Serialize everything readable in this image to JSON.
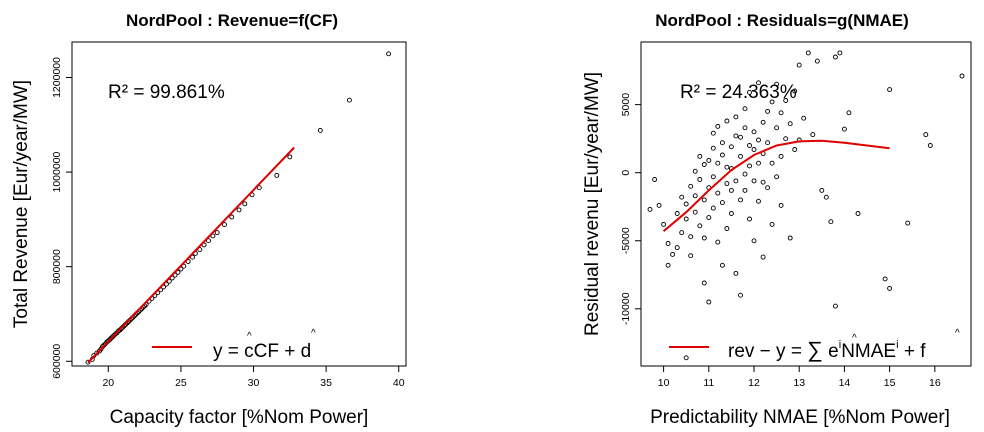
{
  "chart_data": [
    {
      "type": "scatter",
      "title": "NordPool : Revenue=f(CF)",
      "xlabel": "Capacity factor [%Nom Power]",
      "ylabel": "Total Revenue [Eur/year/MW]",
      "xlim": [
        17.5,
        40.5
      ],
      "ylim": [
        590000,
        1275000
      ],
      "x_ticks": [
        20,
        25,
        30,
        35,
        40
      ],
      "y_ticks": [
        600000,
        800000,
        1000000,
        1200000
      ],
      "x_tick_labels": [
        "20",
        "25",
        "30",
        "35",
        "40"
      ],
      "y_tick_labels": [
        "600000",
        "800000",
        "1000000",
        "1200000"
      ],
      "annotation": "R² = 99.861%",
      "legend": {
        "position": "bottom-right",
        "line_color": "#e00000",
        "label": "y = ĉCF + d̂"
      },
      "grid": false,
      "fit_line": {
        "color": "#e00000",
        "points": [
          [
            18.6,
            597000
          ],
          [
            32.8,
            1052000
          ]
        ]
      },
      "series": [
        {
          "values": [
            [
              18.6,
              598000
            ],
            [
              18.9,
              604000
            ],
            [
              19.0,
              612000
            ],
            [
              19.2,
              617000
            ],
            [
              19.4,
              622000
            ],
            [
              19.5,
              626000
            ],
            [
              19.6,
              631000
            ],
            [
              19.7,
              634000
            ],
            [
              19.8,
              637000
            ],
            [
              19.9,
              641000
            ],
            [
              20.0,
              643000
            ],
            [
              20.1,
              646000
            ],
            [
              20.2,
              649000
            ],
            [
              20.3,
              652000
            ],
            [
              20.4,
              655000
            ],
            [
              20.5,
              658000
            ],
            [
              20.6,
              660000
            ],
            [
              20.7,
              664000
            ],
            [
              20.8,
              666000
            ],
            [
              20.9,
              669000
            ],
            [
              21.0,
              672000
            ],
            [
              21.1,
              675000
            ],
            [
              21.2,
              678000
            ],
            [
              21.3,
              681000
            ],
            [
              21.4,
              684000
            ],
            [
              21.5,
              687000
            ],
            [
              21.6,
              690000
            ],
            [
              21.7,
              693000
            ],
            [
              21.8,
              696000
            ],
            [
              21.9,
              699000
            ],
            [
              22.0,
              702000
            ],
            [
              22.1,
              705000
            ],
            [
              22.2,
              708000
            ],
            [
              22.3,
              711000
            ],
            [
              22.4,
              714000
            ],
            [
              22.5,
              717000
            ],
            [
              22.6,
              720000
            ],
            [
              22.8,
              727000
            ],
            [
              23.0,
              733000
            ],
            [
              23.2,
              739000
            ],
            [
              23.4,
              745000
            ],
            [
              23.6,
              751000
            ],
            [
              23.8,
              757000
            ],
            [
              24.0,
              763000
            ],
            [
              24.2,
              769000
            ],
            [
              24.4,
              776000
            ],
            [
              24.6,
              782000
            ],
            [
              24.8,
              788000
            ],
            [
              25.0,
              795000
            ],
            [
              25.2,
              801000
            ],
            [
              25.5,
              811000
            ],
            [
              25.8,
              820000
            ],
            [
              26.0,
              828000
            ],
            [
              26.3,
              836000
            ],
            [
              26.6,
              846000
            ],
            [
              26.9,
              855000
            ],
            [
              27.2,
              865000
            ],
            [
              27.5,
              872000
            ],
            [
              28.0,
              889000
            ],
            [
              28.5,
              905000
            ],
            [
              29.0,
              920000
            ],
            [
              29.4,
              933000
            ],
            [
              29.9,
              952000
            ],
            [
              30.4,
              967000
            ],
            [
              31.6,
              993000
            ],
            [
              32.5,
              1032000
            ],
            [
              34.6,
              1088000
            ],
            [
              36.6,
              1152000
            ],
            [
              39.3,
              1250000
            ]
          ]
        }
      ]
    },
    {
      "type": "scatter",
      "title": "NordPool : Residuals=g(NMAE)",
      "xlabel": "Predictability NMAE [%Nom Power]",
      "ylabel": "Residual revenu [Eur/year/MW]",
      "xlim": [
        9.5,
        16.8
      ],
      "ylim": [
        -14200,
        9600
      ],
      "x_ticks": [
        10,
        11,
        12,
        13,
        14,
        15,
        16
      ],
      "y_ticks": [
        -10000,
        -5000,
        0,
        5000
      ],
      "x_tick_labels": [
        "10",
        "11",
        "12",
        "13",
        "14",
        "15",
        "16"
      ],
      "y_tick_labels": [
        "-10000",
        "-5000",
        "0",
        "5000"
      ],
      "annotation": "R² = 24.363%",
      "legend": {
        "position": "bottom-right",
        "line_color": "#e00000",
        "label": "rev − y = ∑ êⁱ NMAEⁱ + f̂",
        "sum_sub": "i"
      },
      "grid": false,
      "fit_curve": {
        "color": "#e00000",
        "points": [
          [
            10.0,
            -4300
          ],
          [
            10.5,
            -2900
          ],
          [
            11.0,
            -1300
          ],
          [
            11.5,
            200
          ],
          [
            12.0,
            1300
          ],
          [
            12.5,
            2000
          ],
          [
            13.0,
            2300
          ],
          [
            13.5,
            2350
          ],
          [
            14.0,
            2200
          ],
          [
            14.5,
            2000
          ],
          [
            15.0,
            1800
          ]
        ]
      },
      "series": [
        {
          "values": [
            [
              9.7,
              -2700
            ],
            [
              9.8,
              -500
            ],
            [
              9.9,
              -2400
            ],
            [
              10.0,
              -3800
            ],
            [
              10.1,
              -5200
            ],
            [
              10.1,
              -6800
            ],
            [
              10.2,
              -6000
            ],
            [
              10.3,
              -5500
            ],
            [
              10.3,
              -3000
            ],
            [
              10.4,
              -1800
            ],
            [
              10.4,
              -4400
            ],
            [
              10.5,
              -3400
            ],
            [
              10.5,
              -2300
            ],
            [
              10.6,
              -1000
            ],
            [
              10.6,
              -4700
            ],
            [
              10.6,
              -6100
            ],
            [
              10.7,
              -2900
            ],
            [
              10.7,
              -1700
            ],
            [
              10.7,
              100
            ],
            [
              10.8,
              -500
            ],
            [
              10.8,
              -3900
            ],
            [
              10.8,
              1200
            ],
            [
              10.9,
              -2000
            ],
            [
              10.9,
              600
            ],
            [
              10.9,
              -4800
            ],
            [
              10.9,
              -8100
            ],
            [
              11.0,
              -9500
            ],
            [
              11.0,
              -3300
            ],
            [
              11.0,
              -1100
            ],
            [
              11.0,
              900
            ],
            [
              11.1,
              1800
            ],
            [
              11.1,
              -300
            ],
            [
              11.1,
              -2600
            ],
            [
              11.1,
              2900
            ],
            [
              11.2,
              -1500
            ],
            [
              11.2,
              700
            ],
            [
              11.2,
              3400
            ],
            [
              11.2,
              -5100
            ],
            [
              11.3,
              -6800
            ],
            [
              11.3,
              -2200
            ],
            [
              11.3,
              1300
            ],
            [
              11.3,
              2200
            ],
            [
              11.4,
              -800
            ],
            [
              11.4,
              400
            ],
            [
              11.4,
              3800
            ],
            [
              11.4,
              -4100
            ],
            [
              11.5,
              -1300
            ],
            [
              11.5,
              1900
            ],
            [
              11.5,
              300
            ],
            [
              11.5,
              -3000
            ],
            [
              11.6,
              2700
            ],
            [
              11.6,
              -600
            ],
            [
              11.6,
              4100
            ],
            [
              11.6,
              -7400
            ],
            [
              11.7,
              -9000
            ],
            [
              11.7,
              -2000
            ],
            [
              11.7,
              1200
            ],
            [
              11.7,
              2600
            ],
            [
              11.8,
              3300
            ],
            [
              11.8,
              -100
            ],
            [
              11.8,
              -1300
            ],
            [
              11.8,
              4700
            ],
            [
              11.9,
              500
            ],
            [
              11.9,
              2000
            ],
            [
              11.9,
              -3400
            ],
            [
              11.9,
              5900
            ],
            [
              12.0,
              1700
            ],
            [
              12.0,
              -600
            ],
            [
              12.0,
              3000
            ],
            [
              12.0,
              -5000
            ],
            [
              12.1,
              700
            ],
            [
              12.1,
              6600
            ],
            [
              12.1,
              2400
            ],
            [
              12.1,
              -2100
            ],
            [
              12.2,
              -700
            ],
            [
              12.2,
              3700
            ],
            [
              12.2,
              1400
            ],
            [
              12.2,
              -6200
            ],
            [
              12.3,
              4500
            ],
            [
              12.3,
              2200
            ],
            [
              12.3,
              -1100
            ],
            [
              12.4,
              5200
            ],
            [
              12.4,
              -3800
            ],
            [
              12.4,
              700
            ],
            [
              12.5,
              -300
            ],
            [
              12.5,
              3300
            ],
            [
              12.5,
              6500
            ],
            [
              12.6,
              1200
            ],
            [
              12.6,
              4400
            ],
            [
              12.6,
              -2400
            ],
            [
              12.7,
              2500
            ],
            [
              12.7,
              5300
            ],
            [
              12.8,
              3600
            ],
            [
              12.8,
              -4800
            ],
            [
              12.9,
              1700
            ],
            [
              12.9,
              6000
            ],
            [
              13.0,
              7900
            ],
            [
              13.0,
              2400
            ],
            [
              13.1,
              4000
            ],
            [
              13.2,
              8800
            ],
            [
              13.3,
              2800
            ],
            [
              13.4,
              8200
            ],
            [
              13.5,
              -1300
            ],
            [
              13.6,
              -1800
            ],
            [
              13.7,
              -3600
            ],
            [
              13.8,
              -9800
            ],
            [
              13.8,
              8500
            ],
            [
              13.9,
              8800
            ],
            [
              14.0,
              3200
            ],
            [
              14.1,
              4400
            ],
            [
              14.3,
              -3000
            ],
            [
              15.0,
              6100
            ],
            [
              14.9,
              -7800
            ],
            [
              15.0,
              -8500
            ],
            [
              15.4,
              -3700
            ],
            [
              15.8,
              2800
            ],
            [
              15.9,
              2000
            ],
            [
              16.6,
              7100
            ],
            [
              10.5,
              -13600
            ]
          ]
        }
      ]
    }
  ]
}
